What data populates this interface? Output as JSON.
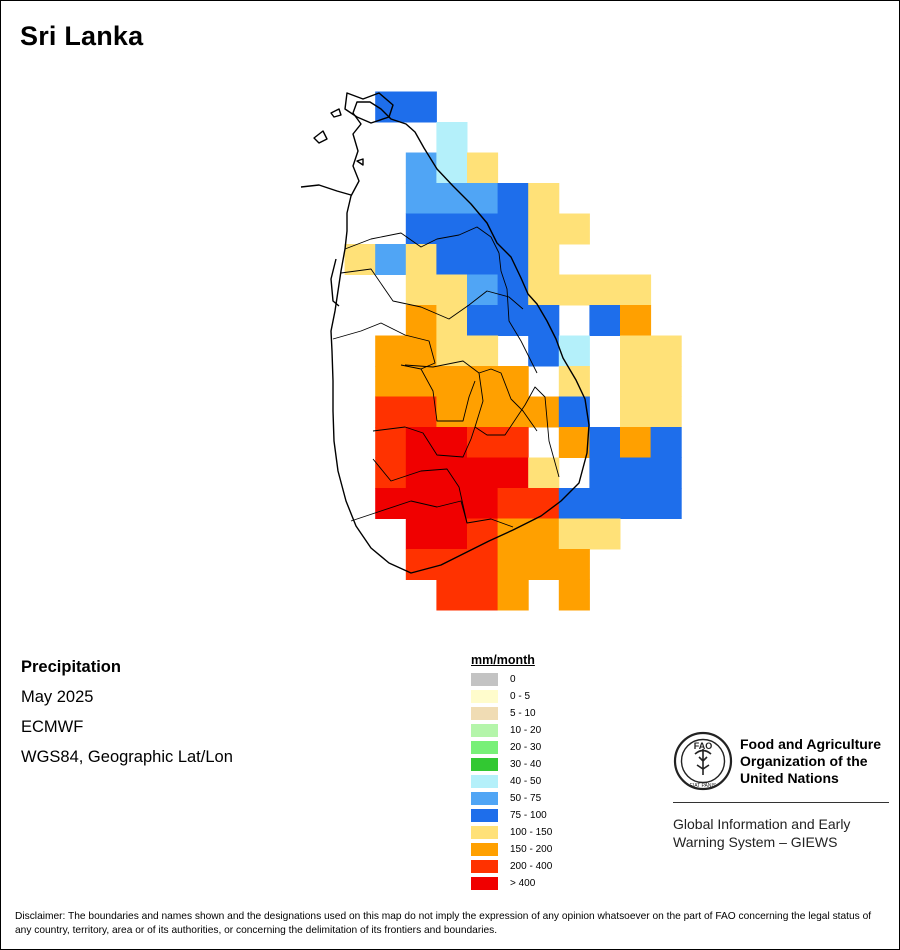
{
  "map": {
    "title": "Sri Lanka"
  },
  "info": {
    "variable": "Precipitation",
    "period": "May 2025",
    "source": "ECMWF",
    "projection": "WGS84, Geographic Lat/Lon"
  },
  "legend": {
    "title": "mm/month",
    "classes": [
      {
        "label": "0",
        "color": "#c3c3c3"
      },
      {
        "label": "0 - 5",
        "color": "#fffccc"
      },
      {
        "label": "5 - 10",
        "color": "#f0dcb4"
      },
      {
        "label": "10 - 20",
        "color": "#b4f5aa"
      },
      {
        "label": "20 - 30",
        "color": "#78f078"
      },
      {
        "label": "30 - 40",
        "color": "#32c832"
      },
      {
        "label": "40 - 50",
        "color": "#b4f0fa"
      },
      {
        "label": "50 - 75",
        "color": "#50a5f5"
      },
      {
        "label": "75 - 100",
        "color": "#1e6eeb"
      },
      {
        "label": "100 - 150",
        "color": "#ffe178"
      },
      {
        "label": "150 - 200",
        "color": "#ffa000"
      },
      {
        "label": "200 - 400",
        "color": "#ff3200"
      },
      {
        "label": "> 400",
        "color": "#f00000"
      }
    ]
  },
  "grid_classes": [
    "............",
    "..88........",
    "....6.......",
    "...769......",
    "...77789....",
    "...888899...",
    ".9798889....",
    "...99789999.",
    "...A9888.8A.",
    "..AA99.86.99",
    "..AAAAA.9.99",
    "..BBAAAA8.99",
    "..BCCBB.A8A8",
    "..BCCCC9.888",
    "..CCCCBB8888",
    "...CCBAA99..",
    "...BBBAAA...",
    "....BBA.A..."
  ],
  "logo": {
    "org_name": "Food and Agriculture\nOrganization of the\nUnited Nations",
    "emblem_letters": "FAO",
    "emblem_motto": "FIAT PANIS",
    "system_name": "Global Information and Early\nWarning System – GIEWS"
  },
  "disclaimer": "Disclaimer: The boundaries and names shown and the designations used on this map do not imply the expression of any opinion whatsoever on the part of FAO concerning the legal status of any country, territory, area or of its authorities, or concerning the delimitation of its frontiers and boundaries."
}
